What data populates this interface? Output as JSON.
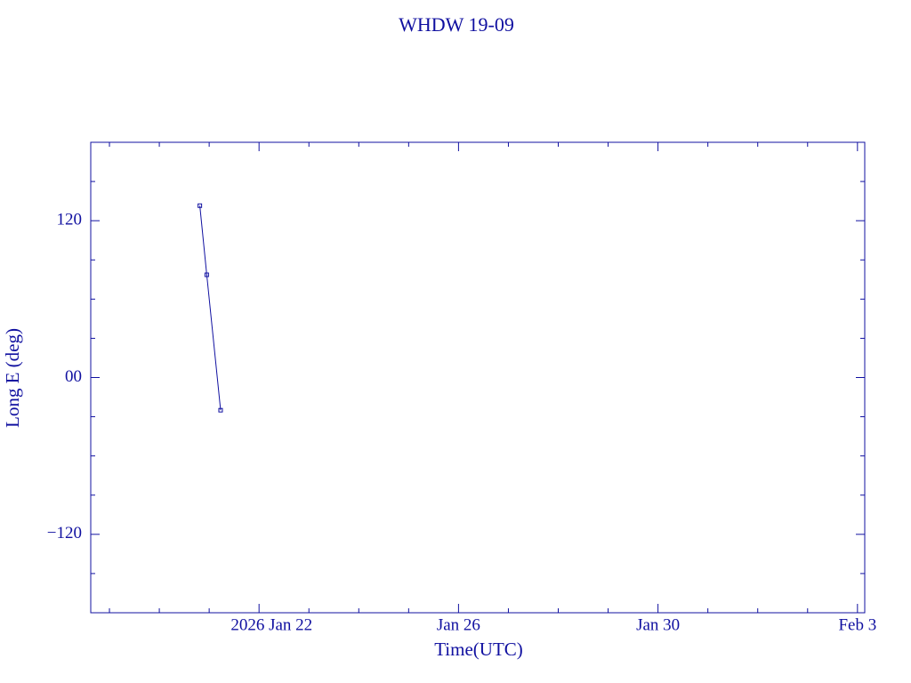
{
  "chart_data": {
    "type": "line",
    "title": "WHDW 19-09",
    "x_label": "Time(UTC)",
    "y_label": "Long E (deg)",
    "x": [
      "2026-01-20T19:30",
      "2026-01-20T22:50",
      "2026-01-21T05:30"
    ],
    "series": [
      {
        "name": "WHDW 19-09",
        "color": "#1010a0",
        "values": [
          131.5,
          78.6,
          -25
        ]
      }
    ],
    "xlim": [
      "2026-01-18T15:00",
      "2026-02-03T03:30"
    ],
    "xticks": [
      {
        "value": "2026-01-22T00:00",
        "label": "2026 Jan 22"
      },
      {
        "value": "2026-01-26T00:00",
        "label": "Jan 26"
      },
      {
        "value": "2026-01-30T00:00",
        "label": "Jan 30"
      },
      {
        "value": "2026-02-03T00:00",
        "label": "Feb  3"
      }
    ],
    "xminorticks": [
      "2026-01-19T00:00",
      "2026-01-20T00:00",
      "2026-01-21T00:00",
      "2026-01-23T00:00",
      "2026-01-24T00:00",
      "2026-01-25T00:00",
      "2026-01-27T00:00",
      "2026-01-28T00:00",
      "2026-01-29T00:00",
      "2026-01-31T00:00",
      "2026-02-01T00:00",
      "2026-02-02T00:00"
    ],
    "ylim": [
      -180,
      180
    ],
    "yticks": [
      {
        "value": -120,
        "label": "−120"
      },
      {
        "value": 0,
        "label": "00"
      },
      120
    ],
    "yminorticks": [
      -150,
      -90,
      -60,
      -30,
      30,
      60,
      90,
      150
    ],
    "grid": false
  }
}
